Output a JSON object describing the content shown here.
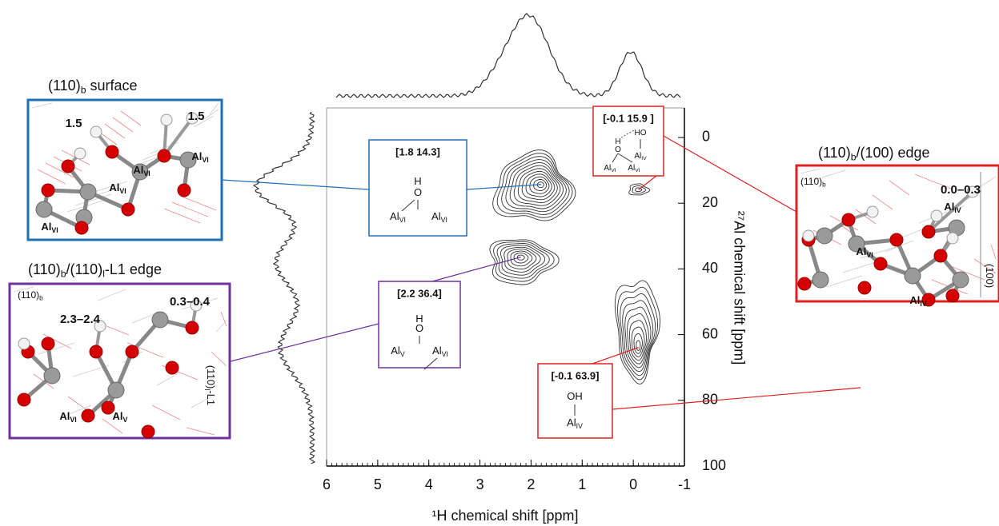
{
  "chart_data": {
    "type": "contour",
    "x_label": "¹H chemical shift [ppm]",
    "y_label": "²⁷Al chemical shift [ppm]",
    "xlim": [
      6,
      -1
    ],
    "xticks": [
      6,
      5,
      4,
      3,
      2,
      1,
      0,
      -1
    ],
    "ylim": [
      -9,
      100
    ],
    "yticks": [
      0,
      20,
      40,
      60,
      80,
      100
    ],
    "color": "#333333",
    "peaks": [
      {
        "x": 1.8,
        "y": 14.3,
        "label": "[1.8  14.3]",
        "color": "#1f6fb4",
        "site": [
          [
            "H"
          ],
          [
            "O"
          ],
          [
            "Al",
            "VI"
          ],
          [
            "Al",
            "VI"
          ]
        ]
      },
      {
        "x": -0.1,
        "y": 15.9,
        "label": "[-0.1  15.9 ]",
        "color": "#e02020",
        "site": [
          [
            "HO"
          ],
          [
            "Al",
            "IV"
          ],
          [
            "H"
          ],
          [
            "O"
          ],
          [
            "Al",
            "VI"
          ],
          [
            "Al",
            "VI"
          ]
        ]
      },
      {
        "x": 2.2,
        "y": 36.4,
        "label": "[2.2  36.4]",
        "color": "#7030a0",
        "site": [
          [
            "H"
          ],
          [
            "O"
          ],
          [
            "Al",
            "V"
          ],
          [
            "Al",
            "VI"
          ]
        ]
      },
      {
        "x": -0.1,
        "y": 63.9,
        "label": "[-0.1  63.9]",
        "color": "#e02020",
        "site": [
          [
            "OH"
          ],
          [
            "Al",
            "IV"
          ]
        ]
      }
    ]
  },
  "panels": [
    {
      "title": [
        "(110)",
        "b",
        " surface"
      ],
      "color": "#1f6fb4",
      "values": [
        "1.5",
        "1.5"
      ],
      "atoms": [
        [
          "Al",
          "VI"
        ],
        [
          "Al",
          "VI"
        ],
        [
          "Al",
          "VI"
        ],
        [
          "Al",
          "VI"
        ]
      ]
    },
    {
      "title": [
        "(110)",
        "b",
        "/(110)",
        "l",
        "-L1 edge"
      ],
      "color": "#7030a0",
      "values": [
        "2.3–2.4",
        "0.3–0.4"
      ],
      "atoms": [
        [
          "Al",
          "VI"
        ],
        [
          "Al",
          "V"
        ]
      ],
      "corner": [
        "(110)",
        "b"
      ],
      "side": [
        "(110)",
        "l",
        "-L1"
      ]
    },
    {
      "title": [
        "(110)",
        "b",
        "/(100) edge"
      ],
      "color": "#e02020",
      "values": [
        "0.0–0.3"
      ],
      "atoms": [
        [
          "Al",
          "IV"
        ],
        [
          "Al",
          "VI"
        ],
        [
          "Al",
          "IV"
        ]
      ],
      "corner": [
        "(110)",
        "b"
      ],
      "side": [
        "(100)"
      ]
    }
  ]
}
